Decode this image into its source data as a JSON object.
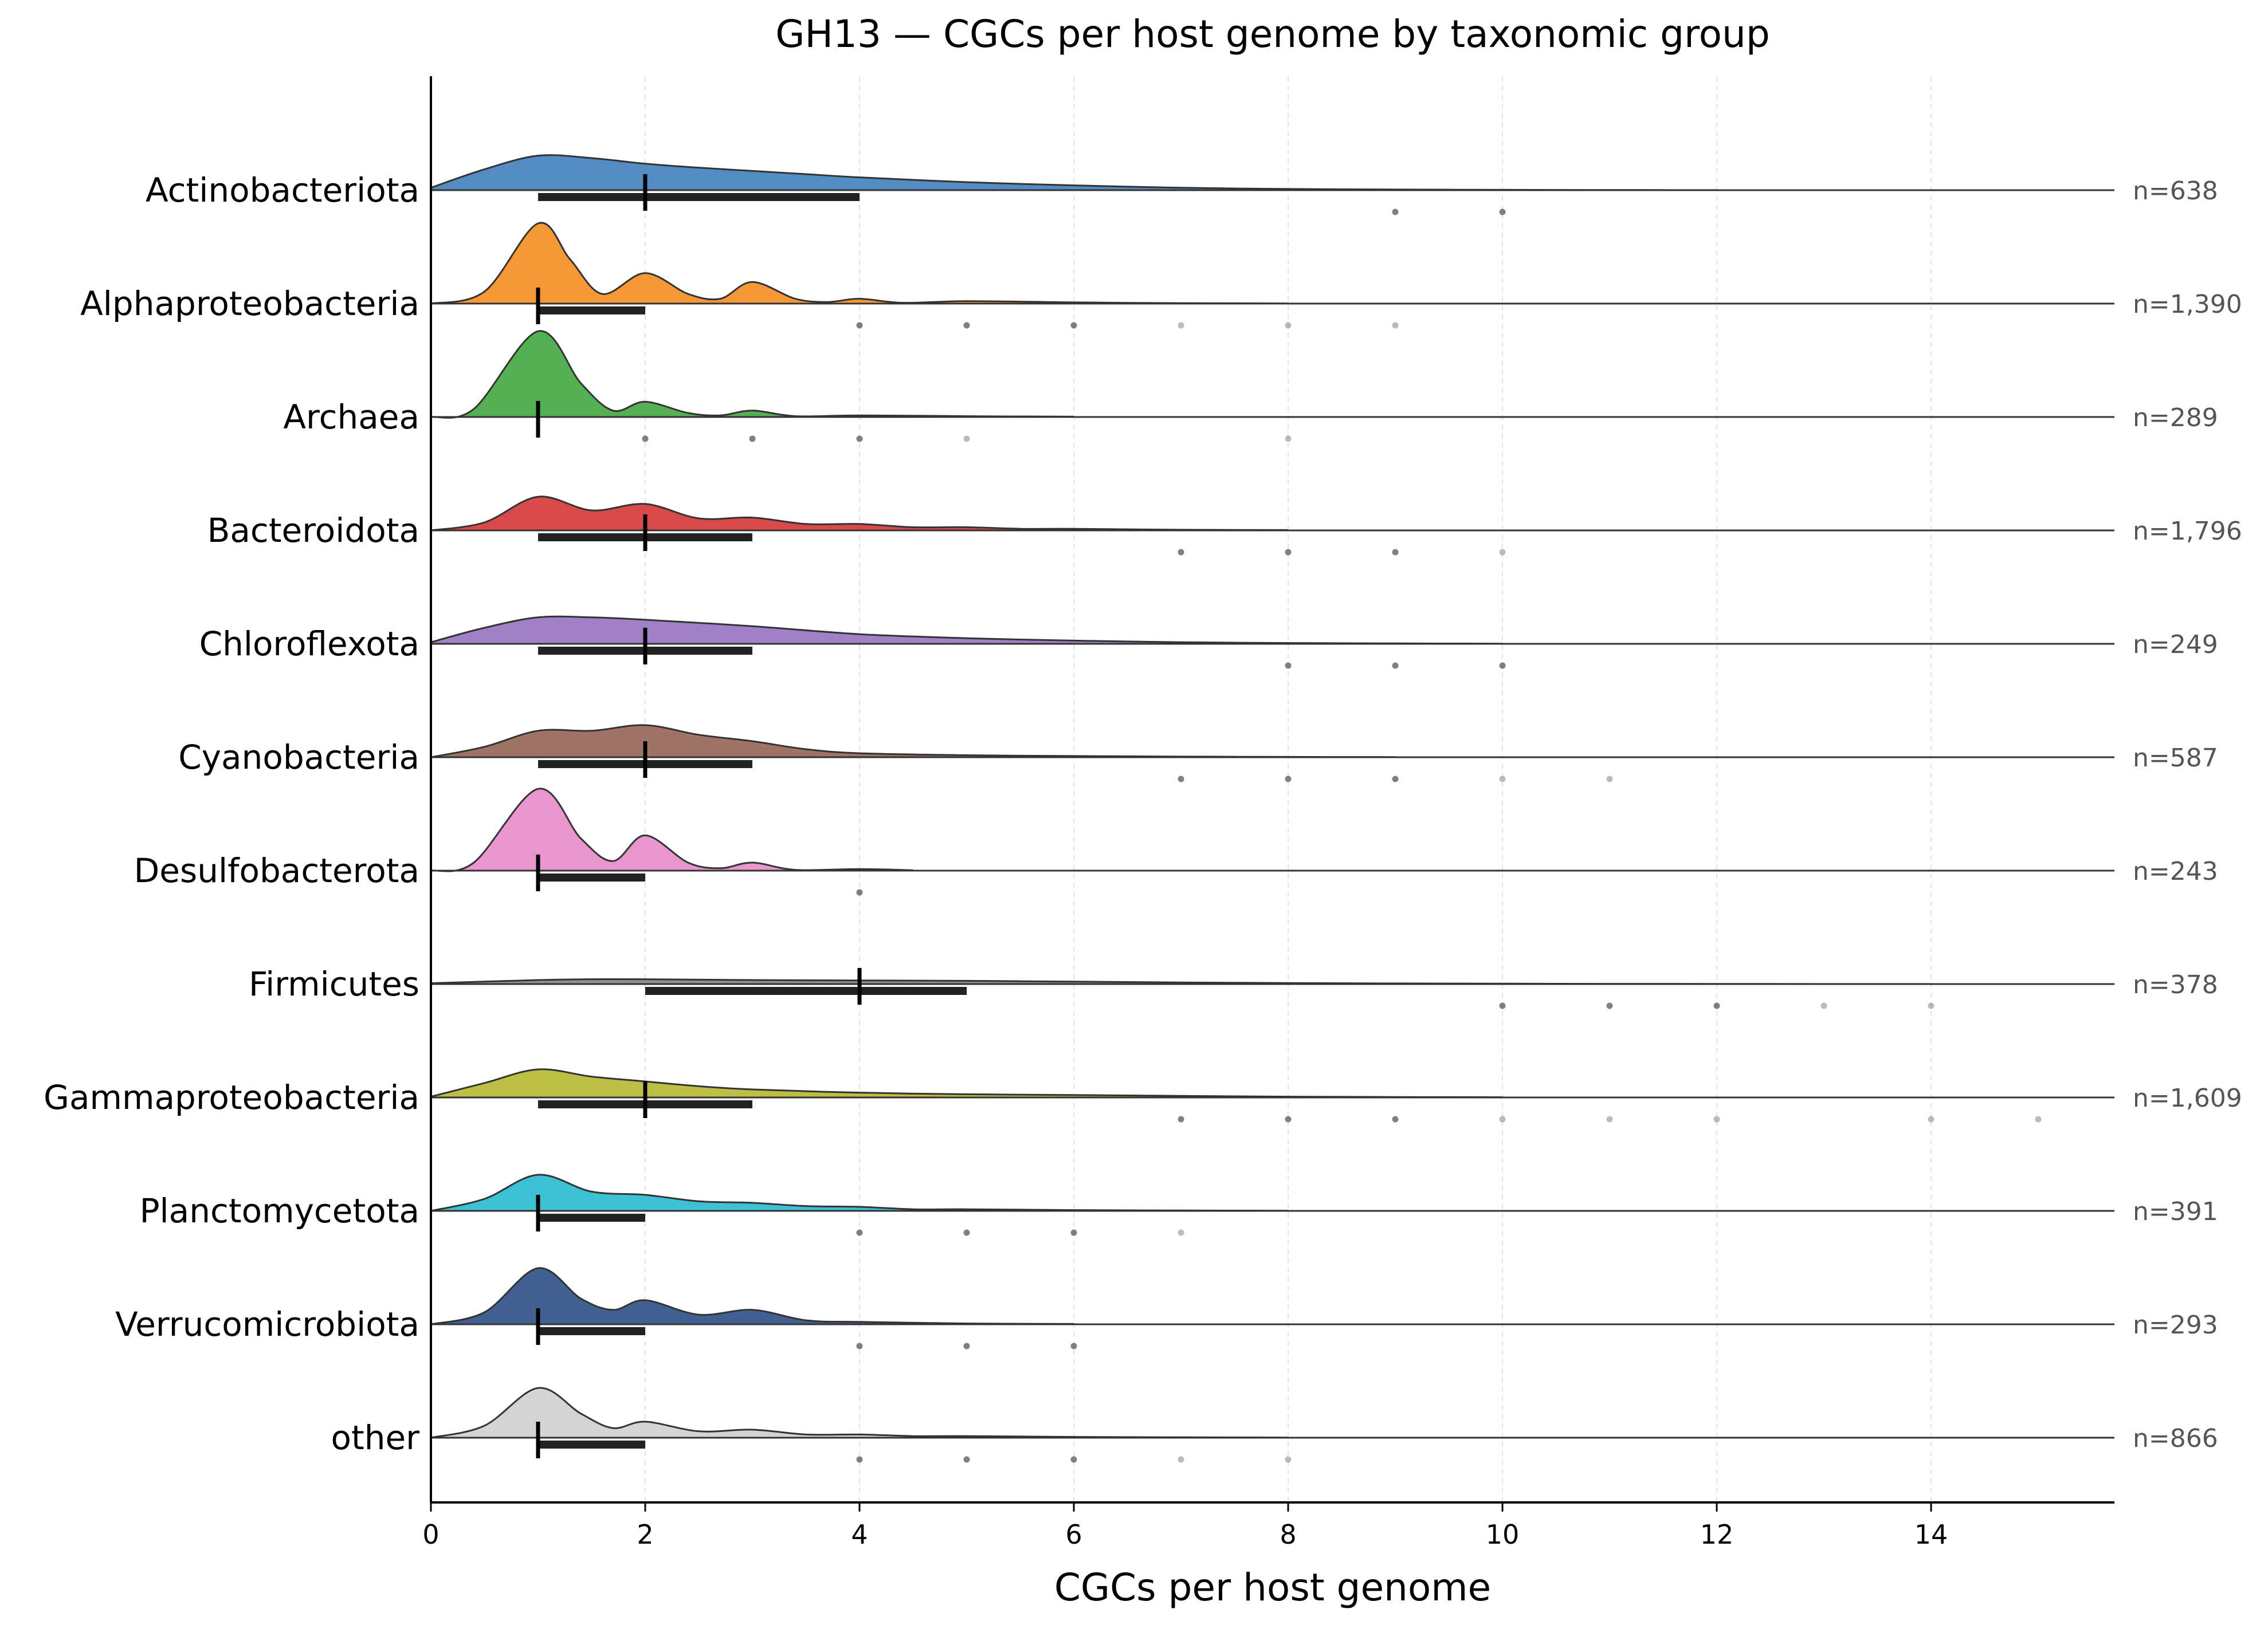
{
  "chart_data": {
    "type": "ridgeline",
    "title": "GH13 — CGCs per host genome by taxonomic group",
    "xlabel": "CGCs per host genome",
    "ylabel": "",
    "xlim": [
      0,
      15.7
    ],
    "xticks": [
      0,
      2,
      4,
      6,
      8,
      10,
      12,
      14
    ],
    "x_grid": true,
    "count_prefix": "n=",
    "series": [
      {
        "name": "Actinobacteriota",
        "color": "#4a86c0",
        "n_label": "n=638",
        "median": 2,
        "q1": 1,
        "q3": 4,
        "density": [
          [
            0,
            0.03
          ],
          [
            0.5,
            0.26
          ],
          [
            1,
            0.43
          ],
          [
            1.5,
            0.4
          ],
          [
            2,
            0.33
          ],
          [
            2.5,
            0.28
          ],
          [
            3,
            0.24
          ],
          [
            3.5,
            0.2
          ],
          [
            4,
            0.16
          ],
          [
            5,
            0.1
          ],
          [
            6,
            0.06
          ],
          [
            7,
            0.03
          ],
          [
            8,
            0.015
          ],
          [
            9,
            0.008
          ],
          [
            10,
            0.004
          ],
          [
            11,
            0.002
          ],
          [
            12,
            0.001
          ]
        ],
        "outliers": [
          9,
          10
        ]
      },
      {
        "name": "Alphaproteobacteria",
        "color": "#f7922c",
        "n_label": "n=1,390",
        "median": 1,
        "q1": 1,
        "q3": 2,
        "density": [
          [
            0,
            0
          ],
          [
            0.5,
            0.15
          ],
          [
            1,
            1
          ],
          [
            1.3,
            0.55
          ],
          [
            1.6,
            0.12
          ],
          [
            2,
            0.38
          ],
          [
            2.4,
            0.12
          ],
          [
            2.7,
            0.06
          ],
          [
            3,
            0.27
          ],
          [
            3.4,
            0.06
          ],
          [
            3.7,
            0.02
          ],
          [
            4,
            0.06
          ],
          [
            4.4,
            0.01
          ],
          [
            5,
            0.03
          ],
          [
            6,
            0.015
          ],
          [
            7,
            0.005
          ],
          [
            8,
            0.002
          ]
        ],
        "outliers": [
          4,
          5,
          6,
          7,
          8,
          9
        ]
      },
      {
        "name": "Archaea",
        "color": "#4aac4a",
        "n_label": "n=289",
        "median": 1,
        "q1": 1,
        "q3": 1,
        "density": [
          [
            0,
            0
          ],
          [
            0.4,
            0.1
          ],
          [
            1,
            1.07
          ],
          [
            1.4,
            0.42
          ],
          [
            1.7,
            0.08
          ],
          [
            2,
            0.19
          ],
          [
            2.4,
            0.05
          ],
          [
            2.7,
            0.02
          ],
          [
            3,
            0.08
          ],
          [
            3.4,
            0.01
          ],
          [
            4,
            0.02
          ],
          [
            5,
            0.01
          ],
          [
            6,
            0.004
          ]
        ],
        "outliers": [
          2,
          3,
          4,
          5,
          8
        ]
      },
      {
        "name": "Bacteroidota",
        "color": "#d63f3f",
        "n_label": "n=1,796",
        "median": 2,
        "q1": 1,
        "q3": 3,
        "density": [
          [
            0,
            0
          ],
          [
            0.5,
            0.1
          ],
          [
            1,
            0.42
          ],
          [
            1.5,
            0.25
          ],
          [
            2,
            0.33
          ],
          [
            2.5,
            0.15
          ],
          [
            3,
            0.16
          ],
          [
            3.5,
            0.08
          ],
          [
            4,
            0.08
          ],
          [
            4.5,
            0.04
          ],
          [
            5,
            0.04
          ],
          [
            5.5,
            0.02
          ],
          [
            6,
            0.02
          ],
          [
            7,
            0.008
          ],
          [
            8,
            0.004
          ]
        ],
        "outliers": [
          7,
          8,
          9,
          10
        ]
      },
      {
        "name": "Chloroflexota",
        "color": "#9b79c3",
        "n_label": "n=249",
        "median": 2,
        "q1": 1,
        "q3": 3,
        "density": [
          [
            0,
            0.02
          ],
          [
            0.5,
            0.2
          ],
          [
            1,
            0.33
          ],
          [
            1.5,
            0.33
          ],
          [
            2,
            0.3
          ],
          [
            3,
            0.22
          ],
          [
            4,
            0.12
          ],
          [
            5,
            0.07
          ],
          [
            6,
            0.04
          ],
          [
            7,
            0.02
          ],
          [
            8,
            0.01
          ],
          [
            9,
            0.005
          ],
          [
            10,
            0.002
          ]
        ],
        "outliers": [
          8,
          9,
          10
        ]
      },
      {
        "name": "Cyanobacteria",
        "color": "#9a6b5e",
        "n_label": "n=587",
        "median": 2,
        "q1": 1,
        "q3": 3,
        "density": [
          [
            0,
            0
          ],
          [
            0.5,
            0.13
          ],
          [
            1,
            0.33
          ],
          [
            1.5,
            0.33
          ],
          [
            2,
            0.4
          ],
          [
            2.5,
            0.28
          ],
          [
            3,
            0.2
          ],
          [
            3.5,
            0.1
          ],
          [
            4,
            0.05
          ],
          [
            5,
            0.025
          ],
          [
            6,
            0.015
          ],
          [
            7,
            0.008
          ],
          [
            8,
            0.004
          ],
          [
            9,
            0.002
          ]
        ],
        "outliers": [
          7,
          8,
          9,
          10,
          11
        ]
      },
      {
        "name": "Desulfobacterota",
        "color": "#e88fcb",
        "n_label": "n=243",
        "median": 1,
        "q1": 1,
        "q3": 2,
        "density": [
          [
            0,
            0
          ],
          [
            0.4,
            0.1
          ],
          [
            1,
            1.02
          ],
          [
            1.4,
            0.4
          ],
          [
            1.7,
            0.12
          ],
          [
            2,
            0.44
          ],
          [
            2.4,
            0.1
          ],
          [
            2.7,
            0.03
          ],
          [
            3,
            0.1
          ],
          [
            3.4,
            0.01
          ],
          [
            4,
            0.02
          ],
          [
            4.5,
            0.005
          ]
        ],
        "outliers": [
          4
        ]
      },
      {
        "name": "Firmicutes",
        "color": "#8a8a8a",
        "n_label": "n=378",
        "median": 4,
        "q1": 2,
        "q3": 5,
        "density": [
          [
            0,
            0.01
          ],
          [
            1,
            0.05
          ],
          [
            1.5,
            0.06
          ],
          [
            2,
            0.06
          ],
          [
            3,
            0.05
          ],
          [
            4,
            0.045
          ],
          [
            5,
            0.04
          ],
          [
            6,
            0.03
          ],
          [
            7,
            0.02
          ],
          [
            8,
            0.012
          ],
          [
            9,
            0.008
          ],
          [
            10,
            0.005
          ],
          [
            11,
            0.003
          ],
          [
            12,
            0.002
          ],
          [
            13,
            0.001
          ],
          [
            14,
            0.0005
          ]
        ],
        "outliers": [
          10,
          11,
          12,
          13,
          14
        ]
      },
      {
        "name": "Gammaproteobacteria",
        "color": "#b8bc3a",
        "n_label": "n=1,609",
        "median": 2,
        "q1": 1,
        "q3": 3,
        "density": [
          [
            0,
            0.01
          ],
          [
            0.5,
            0.18
          ],
          [
            1,
            0.35
          ],
          [
            1.5,
            0.26
          ],
          [
            2,
            0.2
          ],
          [
            2.5,
            0.14
          ],
          [
            3,
            0.1
          ],
          [
            4,
            0.06
          ],
          [
            5,
            0.04
          ],
          [
            6,
            0.03
          ],
          [
            7,
            0.02
          ],
          [
            8,
            0.01
          ],
          [
            9,
            0.006
          ],
          [
            10,
            0.003
          ]
        ],
        "outliers": [
          7,
          8,
          9,
          10,
          11,
          12,
          14,
          15
        ]
      },
      {
        "name": "Planctomycetota",
        "color": "#31bdd1",
        "n_label": "n=391",
        "median": 1,
        "q1": 1,
        "q3": 2,
        "density": [
          [
            0,
            0
          ],
          [
            0.5,
            0.15
          ],
          [
            1,
            0.45
          ],
          [
            1.5,
            0.24
          ],
          [
            2,
            0.2
          ],
          [
            2.5,
            0.12
          ],
          [
            3,
            0.1
          ],
          [
            3.5,
            0.06
          ],
          [
            4,
            0.05
          ],
          [
            4.5,
            0.02
          ],
          [
            5,
            0.02
          ],
          [
            6,
            0.01
          ],
          [
            7,
            0.005
          ],
          [
            8,
            0.002
          ]
        ],
        "outliers": [
          4,
          5,
          6,
          7
        ]
      },
      {
        "name": "Verrucomicrobiota",
        "color": "#375a8a",
        "n_label": "n=293",
        "median": 1,
        "q1": 1,
        "q3": 2,
        "density": [
          [
            0,
            0
          ],
          [
            0.5,
            0.15
          ],
          [
            1,
            0.7
          ],
          [
            1.4,
            0.32
          ],
          [
            1.7,
            0.18
          ],
          [
            2,
            0.3
          ],
          [
            2.5,
            0.12
          ],
          [
            3,
            0.18
          ],
          [
            3.5,
            0.05
          ],
          [
            4,
            0.03
          ],
          [
            5,
            0.01
          ],
          [
            6,
            0.004
          ]
        ],
        "outliers": [
          4,
          5,
          6
        ]
      },
      {
        "name": "other",
        "color": "#d2d2d2",
        "n_label": "n=866",
        "median": 1,
        "q1": 1,
        "q3": 2,
        "density": [
          [
            0,
            0
          ],
          [
            0.5,
            0.15
          ],
          [
            1,
            0.62
          ],
          [
            1.4,
            0.3
          ],
          [
            1.7,
            0.12
          ],
          [
            2,
            0.2
          ],
          [
            2.5,
            0.08
          ],
          [
            3,
            0.1
          ],
          [
            3.5,
            0.04
          ],
          [
            4,
            0.04
          ],
          [
            4.5,
            0.02
          ],
          [
            5,
            0.02
          ],
          [
            6,
            0.01
          ],
          [
            7,
            0.005
          ],
          [
            8,
            0.002
          ]
        ],
        "outliers": [
          4,
          5,
          6,
          7,
          8
        ]
      }
    ]
  }
}
